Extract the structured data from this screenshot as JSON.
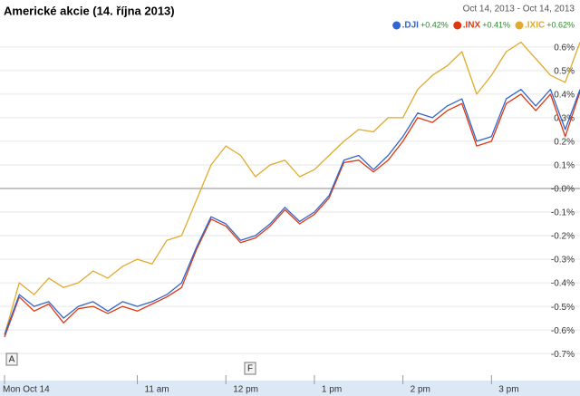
{
  "chart_data": {
    "type": "line",
    "title": "Americké akcie (14. října 2013)",
    "date_range": "Oct 14, 2013 - Oct 14, 2013",
    "flags": [
      "A",
      "F"
    ],
    "categories": [
      "Mon Oct 14",
      null,
      null,
      null,
      null,
      null,
      null,
      null,
      null,
      "11 am",
      null,
      null,
      null,
      null,
      null,
      "12 pm",
      null,
      null,
      null,
      null,
      null,
      "1 pm",
      null,
      null,
      null,
      null,
      null,
      "2 pm",
      null,
      null,
      null,
      null,
      null,
      "3 pm",
      null,
      null,
      null,
      null,
      null,
      null
    ],
    "series": [
      {
        "name": ".DJI",
        "change": "+0.42%",
        "color": "#3366cc",
        "values": [
          -0.62,
          -0.45,
          -0.5,
          -0.48,
          -0.55,
          -0.5,
          -0.48,
          -0.52,
          -0.48,
          -0.5,
          -0.48,
          -0.45,
          -0.4,
          -0.25,
          -0.12,
          -0.15,
          -0.22,
          -0.2,
          -0.15,
          -0.08,
          -0.14,
          -0.1,
          -0.03,
          0.12,
          0.14,
          0.08,
          0.14,
          0.22,
          0.32,
          0.3,
          0.35,
          0.38,
          0.2,
          0.22,
          0.38,
          0.42,
          0.35,
          0.42,
          0.25,
          0.42
        ]
      },
      {
        "name": ".INX",
        "change": "+0.41%",
        "color": "#dc3912",
        "values": [
          -0.63,
          -0.46,
          -0.52,
          -0.49,
          -0.57,
          -0.51,
          -0.5,
          -0.53,
          -0.5,
          -0.52,
          -0.49,
          -0.46,
          -0.42,
          -0.26,
          -0.13,
          -0.16,
          -0.23,
          -0.21,
          -0.16,
          -0.09,
          -0.15,
          -0.11,
          -0.04,
          0.11,
          0.12,
          0.07,
          0.12,
          0.2,
          0.3,
          0.28,
          0.33,
          0.36,
          0.18,
          0.2,
          0.36,
          0.4,
          0.33,
          0.4,
          0.22,
          0.41
        ]
      },
      {
        "name": ".IXIC",
        "change": "+0.62%",
        "color": "#e0aa2e",
        "values": [
          -0.62,
          -0.4,
          -0.45,
          -0.38,
          -0.42,
          -0.4,
          -0.35,
          -0.38,
          -0.33,
          -0.3,
          -0.32,
          -0.22,
          -0.2,
          -0.05,
          0.1,
          0.18,
          0.14,
          0.05,
          0.1,
          0.12,
          0.05,
          0.08,
          0.14,
          0.2,
          0.25,
          0.24,
          0.3,
          0.3,
          0.42,
          0.48,
          0.52,
          0.58,
          0.4,
          0.48,
          0.58,
          0.62,
          0.55,
          0.48,
          0.45,
          0.62
        ]
      }
    ],
    "ylim": [
      -0.78,
      0.68
    ],
    "yticks": [
      {
        "value": 0.6,
        "label": "0.6%"
      },
      {
        "value": 0.5,
        "label": "0.5%"
      },
      {
        "value": 0.4,
        "label": "0.4%"
      },
      {
        "value": 0.3,
        "label": "0.3%"
      },
      {
        "value": 0.2,
        "label": "0.2%"
      },
      {
        "value": 0.1,
        "label": "0.1%"
      },
      {
        "value": 0,
        "label": "-0.0%"
      },
      {
        "value": -0.1,
        "label": "-0.1%"
      },
      {
        "value": -0.2,
        "label": "-0.2%"
      },
      {
        "value": -0.3,
        "label": "-0.3%"
      },
      {
        "value": -0.4,
        "label": "-0.4%"
      },
      {
        "value": -0.5,
        "label": "-0.5%"
      },
      {
        "value": -0.6,
        "label": "-0.6%"
      },
      {
        "value": -0.7,
        "label": "-0.7%"
      }
    ],
    "grid": true
  }
}
